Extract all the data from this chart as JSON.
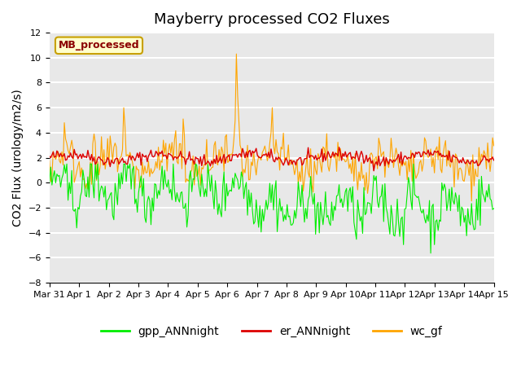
{
  "title": "Mayberry processed CO2 Fluxes",
  "ylabel": "CO2 Flux (urology/m2/s)",
  "n_days": 15,
  "ylim": [
    -8,
    12
  ],
  "yticks": [
    -8,
    -6,
    -4,
    -2,
    0,
    2,
    4,
    6,
    8,
    10,
    12
  ],
  "background_color": "#e8e8e8",
  "grid_color": "#ffffff",
  "title_fontsize": 13,
  "label_fontsize": 10,
  "tick_fontsize": 8,
  "annotation_text": "MB_processed",
  "annotation_color": "#8b0000",
  "annotation_bg": "#ffffcc",
  "annotation_border": "#c8a000",
  "line_colors": {
    "gpp": "#00ee00",
    "er": "#dd0000",
    "wc": "#ffa500"
  },
  "legend_labels": [
    "gpp_ANNnight",
    "er_ANNnight",
    "wc_gf"
  ],
  "n_points": 360,
  "random_seed": 42,
  "x_tick_labels": [
    "Mar 31",
    "Apr 1",
    "Apr 2",
    "Apr 3",
    "Apr 4",
    "Apr 5",
    "Apr 6",
    "Apr 7",
    "Apr 8",
    "Apr 9",
    "Apr 10",
    "Apr 11",
    "Apr 12",
    "Apr 13",
    "Apr 14",
    "Apr 15"
  ]
}
